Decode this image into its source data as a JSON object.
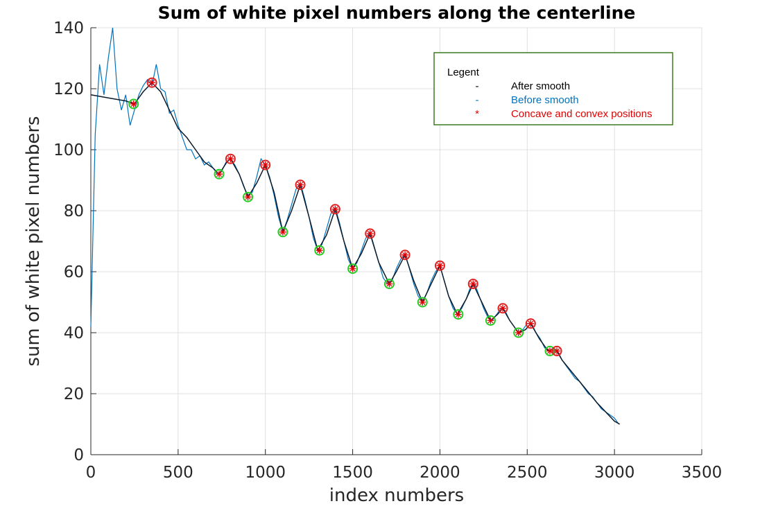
{
  "chart_data": {
    "type": "line",
    "title": "Sum of white pixel numbers along the centerline",
    "x_label": "index numbers",
    "y_label": "sum of white pixel numbers",
    "xlim": [
      0,
      3500
    ],
    "ylim": [
      0,
      140
    ],
    "xticks": [
      0,
      500,
      1000,
      1500,
      2000,
      2500,
      3000,
      3500
    ],
    "yticks": [
      0,
      20,
      40,
      60,
      80,
      100,
      120,
      140
    ],
    "grid": true,
    "legend_title": "Legent",
    "legend_position": "upper right",
    "series": [
      {
        "name": "After smooth",
        "legend_symbol": "-",
        "color": "#0a1a2a",
        "kind": "line",
        "x": [
          0,
          100,
          200,
          250,
          300,
          350,
          400,
          450,
          500,
          550,
          600,
          650,
          700,
          735,
          780,
          800,
          850,
          900,
          950,
          1000,
          1050,
          1100,
          1150,
          1200,
          1250,
          1300,
          1350,
          1400,
          1450,
          1500,
          1550,
          1600,
          1650,
          1710,
          1750,
          1800,
          1850,
          1900,
          1950,
          2000,
          2050,
          2100,
          2150,
          2190,
          2240,
          2290,
          2330,
          2360,
          2400,
          2450,
          2490,
          2520,
          2570,
          2620,
          2670,
          2700,
          2800,
          2900,
          3000,
          3030
        ],
        "values": [
          118,
          117,
          116,
          115,
          119,
          122,
          119,
          113,
          107,
          104,
          100,
          96,
          94,
          92,
          96,
          97,
          92,
          84.5,
          89,
          95,
          86,
          73,
          80,
          88.5,
          78,
          67,
          72,
          80.5,
          70,
          61,
          66,
          72.5,
          63,
          56,
          60,
          65.5,
          57,
          50,
          56,
          62,
          52,
          46,
          51,
          56,
          50,
          44,
          46,
          48,
          44,
          40,
          41,
          43,
          38,
          34,
          34,
          31,
          24,
          17,
          11,
          10
        ]
      },
      {
        "name": "Before smooth",
        "legend_symbol": "-",
        "color": "#0072bd",
        "kind": "line",
        "x": [
          0,
          25,
          50,
          75,
          100,
          125,
          150,
          175,
          200,
          225,
          250,
          275,
          300,
          325,
          350,
          375,
          400,
          425,
          450,
          475,
          500,
          525,
          550,
          575,
          600,
          625,
          650,
          675,
          700,
          725,
          750,
          775,
          800,
          825,
          850,
          875,
          900,
          925,
          950,
          975,
          1000,
          1025,
          1050,
          1075,
          1100,
          1125,
          1150,
          1175,
          1200,
          1225,
          1250,
          1275,
          1300,
          1325,
          1350,
          1375,
          1400,
          1425,
          1450,
          1475,
          1500,
          1525,
          1550,
          1575,
          1600,
          1625,
          1650,
          1675,
          1700,
          1725,
          1750,
          1775,
          1800,
          1825,
          1850,
          1875,
          1900,
          1925,
          1950,
          1975,
          2000,
          2025,
          2050,
          2075,
          2100,
          2125,
          2150,
          2175,
          2200,
          2225,
          2250,
          2275,
          2300,
          2325,
          2350,
          2375,
          2400,
          2425,
          2450,
          2475,
          2500,
          2525,
          2550,
          2575,
          2600,
          2625,
          2650,
          2675,
          2700,
          2725,
          2750,
          2775,
          2800,
          2825,
          2850,
          2875,
          2900,
          2925,
          2950,
          2975,
          3000,
          3025
        ],
        "values": [
          42,
          105,
          128,
          118,
          130,
          140,
          120,
          113,
          118,
          108,
          113,
          118,
          121,
          123,
          121,
          128,
          120,
          119,
          112,
          113,
          108,
          104,
          100,
          100,
          97,
          98,
          95,
          96,
          94,
          92,
          93,
          96,
          97,
          95,
          92,
          88,
          85,
          86,
          91,
          97,
          95,
          91,
          85,
          78,
          73,
          77,
          82,
          87,
          89,
          84,
          78,
          71,
          67,
          69,
          74,
          79,
          81,
          76,
          70,
          64,
          61,
          63,
          67,
          71,
          73,
          68,
          63,
          58,
          56,
          57,
          61,
          64,
          66,
          61,
          56,
          52,
          50,
          53,
          57,
          60,
          62,
          57,
          52,
          48,
          46,
          48,
          51,
          55,
          56,
          52,
          48,
          45,
          44,
          46,
          48,
          47,
          44,
          42,
          40,
          41,
          43,
          43,
          40,
          38,
          35,
          34,
          35,
          34,
          31,
          29,
          27,
          25,
          24,
          22,
          20,
          19,
          17,
          15,
          14,
          13,
          12,
          10
        ]
      },
      {
        "name": "Concave and convex positions",
        "legend_symbol": "*",
        "color": "#e00000",
        "kind": "scatter",
        "x": [
          245,
          350,
          735,
          800,
          900,
          1000,
          1100,
          1200,
          1310,
          1400,
          1500,
          1600,
          1710,
          1800,
          1900,
          2000,
          2105,
          2190,
          2290,
          2360,
          2450,
          2520,
          2630,
          2670
        ],
        "values": [
          115,
          122,
          92,
          97,
          84.5,
          95,
          73,
          88.5,
          67,
          80.5,
          61,
          72.5,
          56,
          65.5,
          50,
          62,
          46,
          56,
          44,
          48,
          40,
          43,
          34,
          34
        ],
        "circle_colors": [
          "#22cc22",
          "#e02020",
          "#22cc22",
          "#e02020",
          "#22cc22",
          "#e02020",
          "#22cc22",
          "#e02020",
          "#22cc22",
          "#e02020",
          "#22cc22",
          "#e02020",
          "#22cc22",
          "#e02020",
          "#22cc22",
          "#e02020",
          "#22cc22",
          "#e02020",
          "#22cc22",
          "#e02020",
          "#22cc22",
          "#e02020",
          "#22cc22",
          "#e02020"
        ]
      }
    ]
  }
}
